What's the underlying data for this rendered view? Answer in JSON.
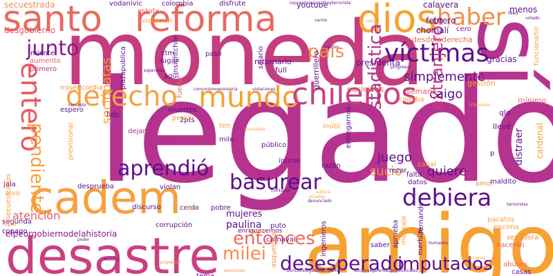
{
  "words": [
    {
      "text": "legado",
      "color": "#b5338e"
    },
    {
      "text": "moneda",
      "color": "#c43d7f"
    },
    {
      "text": "amigo",
      "color": "#f7a133"
    },
    {
      "text": "desastre",
      "color": "#c94081"
    },
    {
      "text": "santo",
      "color": "#e86a60"
    },
    {
      "text": "reforma",
      "color": "#e86a60"
    },
    {
      "text": "dios",
      "color": "#f7a133"
    },
    {
      "text": "sí",
      "color": "#b5338e"
    },
    {
      "text": "cadem",
      "color": "#f6a041"
    },
    {
      "text": "derecho",
      "color": "#f6a041"
    },
    {
      "text": "mundo",
      "color": "#f7a133"
    },
    {
      "text": "chilenos",
      "color": "#c94081"
    },
    {
      "text": "víctimas",
      "color": "#5c0f8b"
    },
    {
      "text": "haber",
      "color": "#f28e4a"
    },
    {
      "text": "país",
      "color": "#f28e4a"
    },
    {
      "text": "junto",
      "color": "#8b1a8d"
    },
    {
      "text": "entero",
      "color": "#e65b64"
    },
    {
      "text": "pendiente",
      "color": "#f6a041"
    },
    {
      "text": "basurear",
      "color": "#5c0f8b"
    },
    {
      "text": "aprendió",
      "color": "#5c0f8b"
    },
    {
      "text": "entonces",
      "color": "#e86a60"
    },
    {
      "text": "debiera",
      "color": "#5c0f8b"
    },
    {
      "text": "milei",
      "color": "#f28e4a"
    },
    {
      "text": "desesperado",
      "color": "#5c0f8b"
    },
    {
      "text": "imputados",
      "color": "#5c0f8b"
    },
    {
      "text": "estadística",
      "color": "#b5338e"
    },
    {
      "text": "extranjeros",
      "color": "#c43d7f"
    },
    {
      "text": "sociópatas",
      "color": "#f7a133"
    },
    {
      "text": "juego",
      "color": "#5c0f8b"
    },
    {
      "text": "quiere",
      "color": "#5c0f8b"
    },
    {
      "text": "sucio",
      "color": "#f28e4a"
    },
    {
      "text": "simplemente",
      "color": "#5c0f8b"
    },
    {
      "text": "atención",
      "color": "#e65b64"
    },
    {
      "text": "caigo",
      "color": "#5c0f8b"
    },
    {
      "text": "mujeres",
      "color": "#5c0f8b"
    },
    {
      "text": "paulina",
      "color": "#5c0f8b"
    },
    {
      "text": "elpeorgobiernodelahistoria",
      "color": "#8b1a8d"
    },
    {
      "text": "secuestrada",
      "color": "#f28e4a"
    },
    {
      "text": "desgobierno",
      "color": "#e65b64"
    },
    {
      "text": "vodanivic",
      "color": "#5c0f8b"
    },
    {
      "text": "estafa",
      "color": "#e65b64"
    },
    {
      "text": "violación",
      "color": "#f7a133"
    },
    {
      "text": "colombia",
      "color": "#5c0f8b"
    },
    {
      "text": "disfrute",
      "color": "#5c0f8b"
    },
    {
      "text": "youtube",
      "color": "#5c0f8b"
    },
    {
      "text": "calavera",
      "color": "#5c0f8b"
    },
    {
      "text": "febrero",
      "color": "#5c0f8b"
    },
    {
      "text": "menos",
      "color": "#5c0f8b"
    },
    {
      "text": "chomalí",
      "color": "#5c0f8b"
    },
    {
      "text": "cero",
      "color": "#8b1a8d"
    },
    {
      "text": "desdeladerecha",
      "color": "#e86a60"
    },
    {
      "text": "presidenta",
      "color": "#5c0f8b"
    },
    {
      "text": "gracias",
      "color": "#5c0f8b"
    },
    {
      "text": "okupa",
      "color": "#b5338e"
    },
    {
      "text": "gestión",
      "color": "#f7a133"
    },
    {
      "text": "mínimo",
      "color": "#e86a60"
    },
    {
      "text": "qlo",
      "color": "#5c0f8b"
    },
    {
      "text": "llevé",
      "color": "#5c0f8b"
    },
    {
      "text": "distraer",
      "color": "#5c0f8b"
    },
    {
      "text": "cardenal",
      "color": "#f7a133"
    },
    {
      "text": "semana",
      "color": "#e65b64"
    },
    {
      "text": "cagaba",
      "color": "#f7a133"
    },
    {
      "text": "nucleares",
      "color": "#e86a60"
    },
    {
      "text": "retomarlo",
      "color": "#5c0f8b"
    },
    {
      "text": "full",
      "color": "#5c0f8b"
    },
    {
      "text": "guerrillero",
      "color": "#5c0f8b"
    },
    {
      "text": "miente",
      "color": "#5c0f8b"
    },
    {
      "text": "aumento",
      "color": "#e65b64"
    },
    {
      "text": "primero",
      "color": "#b5338e"
    },
    {
      "text": "ctm",
      "color": "#5c0f8b"
    },
    {
      "text": "lugar",
      "color": "#5c0f8b"
    },
    {
      "text": "aquí",
      "color": "#5c0f8b"
    },
    {
      "text": "pasó",
      "color": "#5c0f8b"
    },
    {
      "text": "plazapublica",
      "color": "#5c0f8b"
    },
    {
      "text": "salario",
      "color": "#5c0f8b"
    },
    {
      "text": "misericordia",
      "color": "#f28e4a"
    },
    {
      "text": "espero",
      "color": "#5c0f8b"
    },
    {
      "text": "hdp",
      "color": "#5c0f8b"
    },
    {
      "text": "fuerte",
      "color": "#e86a60"
    },
    {
      "text": "muertes",
      "color": "#5c0f8b"
    },
    {
      "text": "dejaron",
      "color": "#b5338e"
    },
    {
      "text": "2pts",
      "color": "#5c0f8b"
    },
    {
      "text": "perico",
      "color": "#f7a133"
    },
    {
      "text": "ten",
      "color": "#f7a133"
    },
    {
      "text": "mile",
      "color": "#5c0f8b"
    },
    {
      "text": "inútil",
      "color": "#f7a133"
    },
    {
      "text": "público",
      "color": "#5c0f8b"
    },
    {
      "text": "íntimo",
      "color": "#5c0f8b"
    },
    {
      "text": "razón",
      "color": "#5c0f8b"
    },
    {
      "text": "entregarnos",
      "color": "#5c0f8b"
    },
    {
      "text": "rezar",
      "color": "#5c0f8b"
    },
    {
      "text": "falta",
      "color": "#5c0f8b"
    },
    {
      "text": "datos",
      "color": "#5c0f8b"
    },
    {
      "text": "canal",
      "color": "#f7a133"
    },
    {
      "text": "maldito",
      "color": "#5c0f8b"
    },
    {
      "text": "amor",
      "color": "#f28e4a"
    },
    {
      "text": "p",
      "color": "#5c0f8b"
    },
    {
      "text": "jala",
      "color": "#5c0f8b"
    },
    {
      "text": "vivo",
      "color": "#f7a133"
    },
    {
      "text": "violan",
      "color": "#5c0f8b"
    },
    {
      "text": "discurso",
      "color": "#5c0f8b"
    },
    {
      "text": "pobre",
      "color": "#5c0f8b"
    },
    {
      "text": "cerdo",
      "color": "#5c0f8b"
    },
    {
      "text": "corrupción",
      "color": "#5c0f8b"
    },
    {
      "text": "segunda",
      "color": "#5c0f8b"
    },
    {
      "text": "copago",
      "color": "#5c0f8b"
    },
    {
      "text": "tipo",
      "color": "#f28e4a"
    },
    {
      "text": "puto",
      "color": "#5c0f8b"
    },
    {
      "text": "enriquecernos",
      "color": "#5c0f8b"
    },
    {
      "text": "carnaval",
      "color": "#5c0f8b"
    },
    {
      "text": "goce",
      "color": "#f28e4a"
    },
    {
      "text": "mensaje",
      "color": "#f7a133"
    },
    {
      "text": "saber",
      "color": "#5c0f8b"
    },
    {
      "text": "pacatos",
      "color": "#f7a133"
    },
    {
      "text": "encima",
      "color": "#f7a133"
    },
    {
      "text": "senadora",
      "color": "#f28e4a"
    },
    {
      "text": "nacerán",
      "color": "#e65b64"
    },
    {
      "text": "abusos",
      "color": "#e86a60"
    },
    {
      "text": "casas",
      "color": "#5c0f8b"
    },
    {
      "text": "fernando",
      "color": "#5c0f8b"
    },
    {
      "text": "ingenieros",
      "color": "#5c0f8b"
    },
    {
      "text": "tema",
      "color": "#5c0f8b"
    },
    {
      "text": "asquerosa",
      "color": "#f28e4a"
    },
    {
      "text": "previsional",
      "color": "#f7a133"
    },
    {
      "text": "desprueba",
      "color": "#5c0f8b"
    },
    {
      "text": "secuestrados",
      "color": "#f7a133"
    },
    {
      "text": "insightchile",
      "color": "#5c0f8b"
    },
    {
      "text": "funcionario",
      "color": "#f7a133"
    },
    {
      "text": "merluzo",
      "color": "#5c0f8b"
    },
    {
      "text": "aprueba",
      "color": "#5c0f8b"
    },
    {
      "text": "comunismoesmiseria",
      "color": "#5c0f8b"
    },
    {
      "text": "vinieron",
      "color": "#5c0f8b"
    },
    {
      "text": "violaciones",
      "color": "#5c0f8b"
    },
    {
      "text": "progresos",
      "color": "#5c0f8b"
    },
    {
      "text": "fronteras",
      "color": "#5c0f8b"
    },
    {
      "text": "terroristas",
      "color": "#5c0f8b"
    },
    {
      "text": "varios",
      "color": "#5c0f8b"
    },
    {
      "text": "liked",
      "color": "#5c0f8b"
    },
    {
      "text": "votado",
      "color": "#5c0f8b"
    },
    {
      "text": "pensiones",
      "color": "#f28e4a"
    },
    {
      "text": "doctoresgerentesprofesionales",
      "color": "#5c0f8b"
    },
    {
      "text": "boricunelegadodemuerte",
      "color": "#5c0f8b"
    },
    {
      "text": "izquierdamiserableyterrorista",
      "color": "#5c0f8b"
    },
    {
      "text": "cultura",
      "color": "#f7a133"
    },
    {
      "text": "picados",
      "color": "#f7a133"
    },
    {
      "text": "denunciado",
      "color": "#5c0f8b"
    },
    {
      "text": "poder",
      "color": "#5c0f8b"
    },
    {
      "text": "historia",
      "color": "#5c0f8b"
    },
    {
      "text": "propiedad",
      "color": "#f28e4a"
    },
    {
      "text": "humanos",
      "color": "#5c0f8b"
    },
    {
      "text": "términos",
      "color": "#f7a133"
    },
    {
      "text": "esperanza",
      "color": "#5c0f8b"
    },
    {
      "text": "corrupto",
      "color": "#5c0f8b"
    },
    {
      "text": "fuerza",
      "color": "#f7a133"
    },
    {
      "text": "alcanzado",
      "color": "#f7a133"
    },
    {
      "text": "tribunales",
      "color": "#f7a133"
    },
    {
      "text": "cancel",
      "color": "#f7a133"
    }
  ]
}
